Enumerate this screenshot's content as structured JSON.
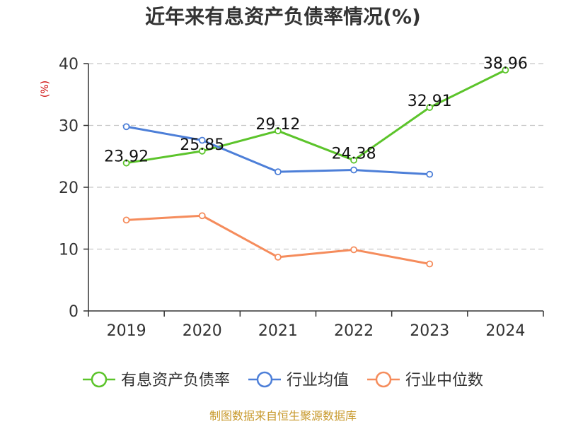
{
  "chart_data": {
    "type": "line",
    "title": "近年来有息资产负债率情况(%)",
    "ylabel": "(%)",
    "xlabel": "",
    "ylim": [
      0,
      40
    ],
    "yticks": [
      0,
      10,
      20,
      30,
      40
    ],
    "categories": [
      "2019",
      "2020",
      "2021",
      "2022",
      "2023",
      "2024"
    ],
    "grid": true,
    "legend_position": "bottom",
    "source": "制图数据来自恒生聚源数据库",
    "series": [
      {
        "name": "有息资产负债率",
        "color": "#5cc42b",
        "values": [
          23.92,
          25.85,
          29.12,
          24.38,
          32.91,
          38.96
        ],
        "labels": [
          "23.92",
          "25.85",
          "29.12",
          "24.38",
          "32.91",
          "38.96"
        ]
      },
      {
        "name": "行业均值",
        "color": "#4d7fd8",
        "values": [
          29.8,
          27.6,
          22.5,
          22.8,
          22.1,
          null
        ]
      },
      {
        "name": "行业中位数",
        "color": "#f58c5c",
        "values": [
          14.7,
          15.4,
          8.7,
          9.9,
          7.6,
          null
        ]
      }
    ]
  }
}
